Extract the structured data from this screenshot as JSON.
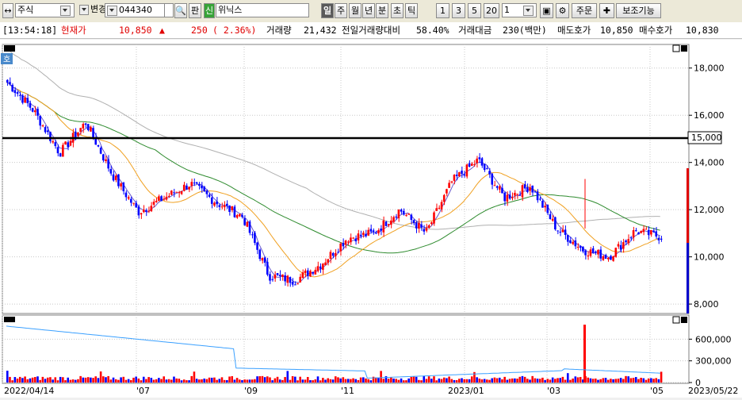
{
  "toolbar": {
    "market_type": "주식",
    "change_label": "변경",
    "code": "044340",
    "pan_label": "판",
    "new_badge": "신",
    "name": "위닉스",
    "period_buttons": [
      "일",
      "주",
      "월",
      "년",
      "분",
      "초",
      "틱"
    ],
    "active_period": "일",
    "interval_buttons": [
      "1",
      "3",
      "5",
      "20"
    ],
    "interval_value": "1",
    "order_button": "주문",
    "aux_button": "보조기능"
  },
  "info": {
    "time": "[13:54:18]",
    "price_label": "현재가",
    "price": "10,850",
    "arrow": "▲",
    "change": "250",
    "change_pct": "( 2.36%)",
    "volume_label": "거래량",
    "volume": "21,432",
    "prev_ratio_label": "전일거래량대비",
    "prev_ratio": "58.40%",
    "amount_label": "거래대금",
    "amount": "230(백만)",
    "ask_label": "매도호가",
    "ask": "10,850",
    "bid_label": "매수호가",
    "bid": "10,830"
  },
  "chart": {
    "ho_badge": "호",
    "hline_value_label": "15,000",
    "price_ticks": [
      "18,000",
      "16,000",
      "14,000",
      "12,000",
      "10,000",
      "8,000"
    ],
    "volume_ticks": [
      "600,000",
      "300,000",
      "0"
    ],
    "date_labels": [
      "2022/04/14",
      "'07",
      "'09",
      "'11",
      "2023/01",
      "'03",
      "'05",
      "2023/05/22"
    ],
    "colors": {
      "up": "#ff0000",
      "down": "#0000ff",
      "ma5": "#6a5acd",
      "ma20": "#f0a020",
      "ma60": "#2e8b2e",
      "ma120": "#a9a9a9",
      "hline": "#000000",
      "vol_line": "#3aa0ff"
    }
  },
  "chart_data": {
    "type": "candlestick",
    "title": "",
    "y_range": [
      7600,
      19000
    ],
    "horizontal_line": 15000,
    "current_price": 10850,
    "last_bar_price_range": [
      7600,
      13800
    ],
    "approx_close_path": [
      {
        "date": "2022/04/14",
        "close": 17400
      },
      {
        "date": "2022/05",
        "close": 16200
      },
      {
        "date": "2022/05",
        "close": 14400
      },
      {
        "date": "2022/06",
        "close": 15700
      },
      {
        "date": "2022/07",
        "close": 13500
      },
      {
        "date": "2022/07",
        "close": 11900
      },
      {
        "date": "2022/08",
        "close": 12500
      },
      {
        "date": "2022/08",
        "close": 13100
      },
      {
        "date": "2022/08",
        "close": 12300
      },
      {
        "date": "2022/09",
        "close": 11700
      },
      {
        "date": "2022/10",
        "close": 9200
      },
      {
        "date": "2022/10",
        "close": 9000
      },
      {
        "date": "2022/11",
        "close": 9700
      },
      {
        "date": "2022/11",
        "close": 10800
      },
      {
        "date": "2022/12",
        "close": 11000
      },
      {
        "date": "2022/12",
        "close": 12000
      },
      {
        "date": "2023/01",
        "close": 11000
      },
      {
        "date": "2023/01",
        "close": 13200
      },
      {
        "date": "2023/02",
        "close": 14100
      },
      {
        "date": "2023/02",
        "close": 12500
      },
      {
        "date": "2023/03",
        "close": 13000
      },
      {
        "date": "2023/03",
        "close": 11200
      },
      {
        "date": "2023/04",
        "close": 10300
      },
      {
        "date": "2023/05",
        "close": 10000
      },
      {
        "date": "2023/05",
        "close": 11100
      },
      {
        "date": "2023/05/22",
        "close": 10850
      }
    ],
    "volume_y_range": [
      0,
      900000
    ],
    "volume_spikes": [
      {
        "date": "2023/03",
        "volume": 800000
      }
    ]
  }
}
